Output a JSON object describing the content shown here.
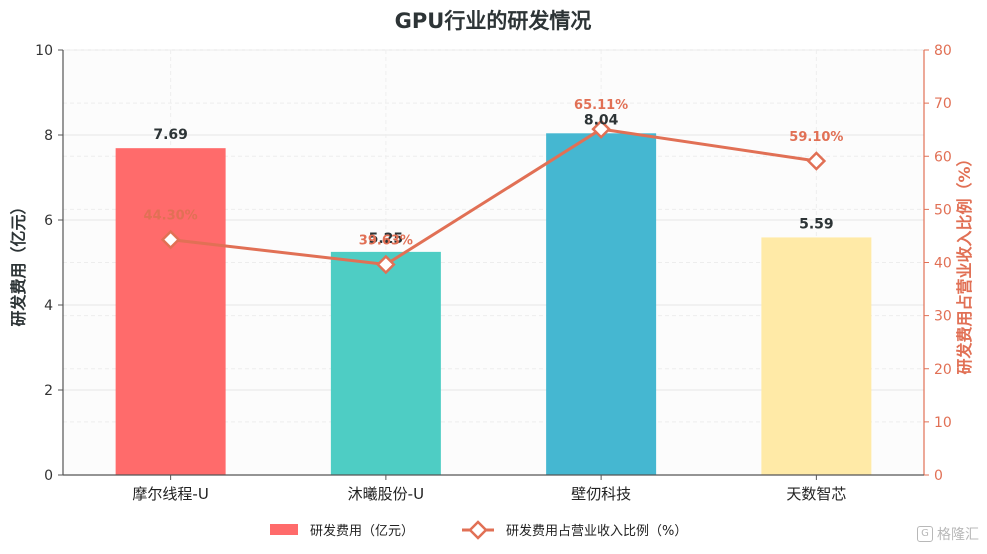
{
  "chart_data": {
    "type": "bar",
    "title": "GPU行业的研发情况",
    "categories": [
      "摩尔线程-U",
      "沐曦股份-U",
      "壁仞科技",
      "天数智芯"
    ],
    "series": [
      {
        "name": "研发费用（亿元）",
        "type": "bar",
        "axis": "left",
        "values": [
          7.69,
          5.25,
          8.04,
          5.59
        ],
        "labels": [
          "7.69",
          "5.25",
          "8.04",
          "5.59"
        ],
        "colors": [
          "#ff6b6b",
          "#4ecdc4",
          "#45b7d1",
          "#ffeaa7"
        ]
      },
      {
        "name": "研发费用占营业收入比例（%）",
        "type": "line",
        "axis": "right",
        "values": [
          44.3,
          39.63,
          65.11,
          59.1
        ],
        "labels": [
          "44.30%",
          "39.63%",
          "65.11%",
          "59.10%"
        ],
        "color": "#e17055"
      }
    ],
    "ylabel": "研发费用（亿元）",
    "ylabel_right": "研发费用占营业收入比例（%）",
    "ylim": [
      0,
      10
    ],
    "ylim_right": [
      0,
      80
    ],
    "yticks": [
      "0",
      "2",
      "4",
      "6",
      "8",
      "10"
    ],
    "yticks_right": [
      "0",
      "10",
      "20",
      "30",
      "40",
      "50",
      "60",
      "70",
      "80"
    ],
    "grid": true,
    "legend_position": "bottom"
  },
  "watermark": "格隆汇"
}
